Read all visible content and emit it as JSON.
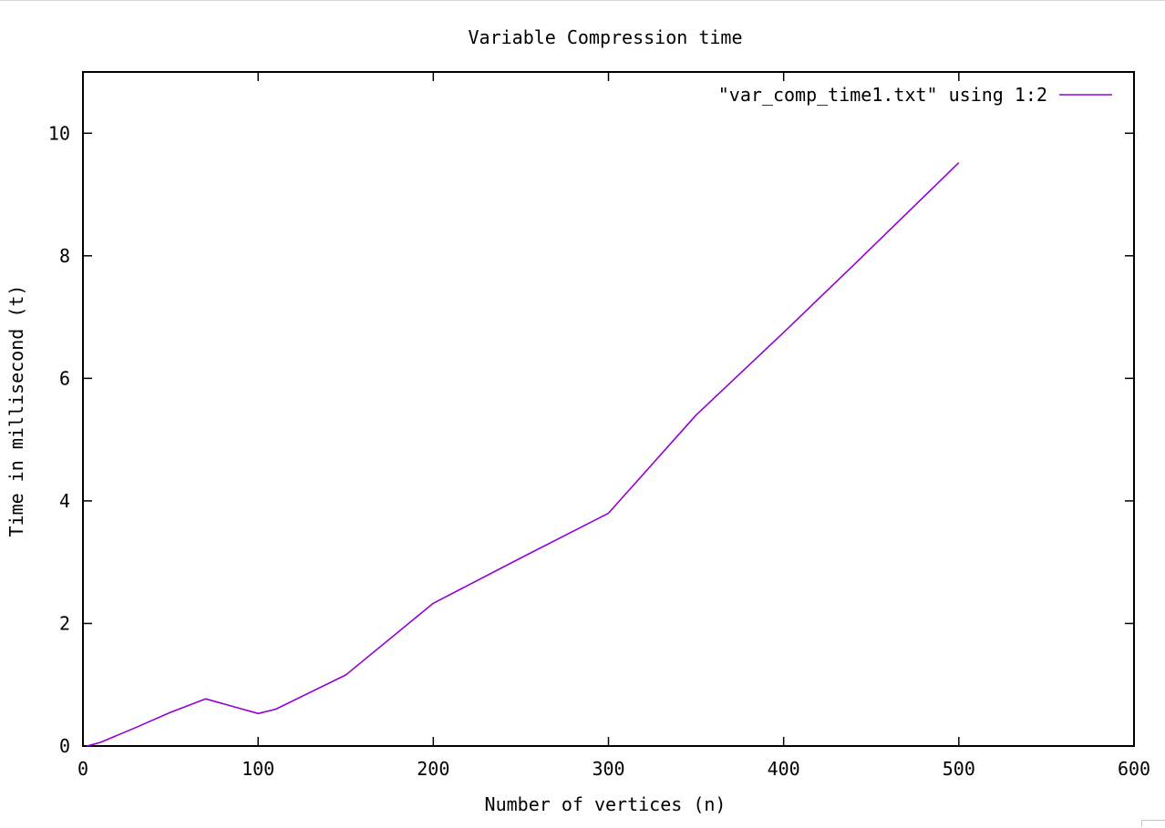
{
  "chart_data": {
    "type": "line",
    "title": "Variable Compression time",
    "xlabel": "Number of vertices (n)",
    "ylabel": "Time in millisecond (t)",
    "xlim": [
      0,
      600
    ],
    "ylim": [
      0,
      11
    ],
    "xticks": [
      0,
      100,
      200,
      300,
      400,
      500,
      600
    ],
    "yticks": [
      0,
      2,
      4,
      6,
      8,
      10
    ],
    "grid": false,
    "legend_position": "top-right",
    "series": [
      {
        "name": "\"var_comp_time1.txt\" using 1:2",
        "color": "#9400d3",
        "x": [
          2,
          5,
          10,
          30,
          50,
          70,
          100,
          110,
          150,
          200,
          250,
          300,
          350,
          400,
          440,
          500
        ],
        "y": [
          0.0,
          0.02,
          0.06,
          0.3,
          0.55,
          0.77,
          0.53,
          0.6,
          1.16,
          2.33,
          3.07,
          3.8,
          5.4,
          6.75,
          7.85,
          9.52
        ]
      }
    ]
  }
}
